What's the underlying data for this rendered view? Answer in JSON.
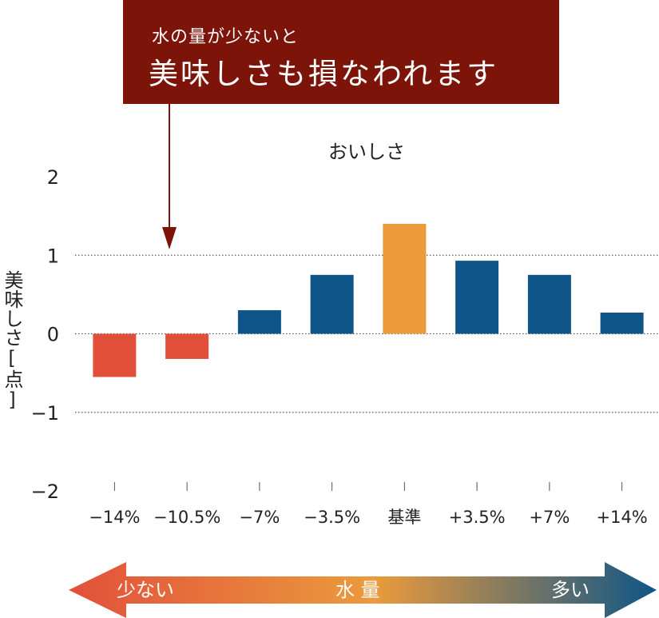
{
  "banner": {
    "subtitle": "水の量が少ないと",
    "title": "美味しさも損なわれます",
    "color": "#7d1409"
  },
  "chart_data": {
    "type": "bar",
    "title": "おいしさ",
    "ylabel": "美味しさ[点]",
    "xlabel": "",
    "categories": [
      "−14%",
      "−10.5%",
      "−7%",
      "−3.5%",
      "基準",
      "+3.5%",
      "+7%",
      "+14%"
    ],
    "values": [
      -0.55,
      -0.32,
      0.3,
      0.75,
      1.4,
      0.93,
      0.75,
      0.27
    ],
    "bar_colors": [
      "#e2503b",
      "#e2503b",
      "#0f5587",
      "#0f5587",
      "#eb9b3c",
      "#0f5587",
      "#0f5587",
      "#0f5587"
    ],
    "ylim": [
      -2,
      2
    ],
    "yticks": [
      2,
      1,
      0,
      -1,
      -2
    ],
    "ytick_labels": [
      "2",
      "1",
      "0",
      "−1",
      "−2"
    ],
    "gridlines": [
      1,
      0,
      -1
    ],
    "grid": "dotted"
  },
  "scale_arrow": {
    "left_label": "少ない",
    "center_label": "水 量",
    "right_label": "多い",
    "colors": [
      "#e2503b",
      "#eb9b3c",
      "#0f5587"
    ]
  }
}
